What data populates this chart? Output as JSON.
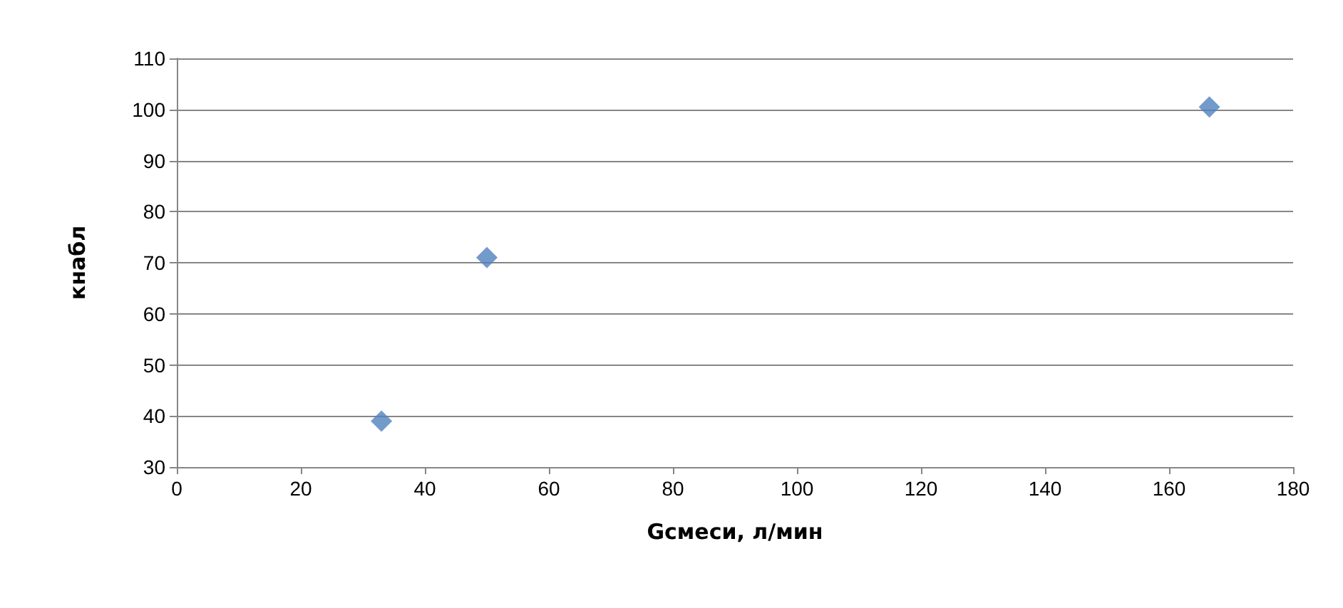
{
  "chart_data": {
    "type": "scatter",
    "xlabel": "Gсмеси, л/мин",
    "ylabel": "кнабл",
    "x": [
      33,
      50,
      166.5
    ],
    "series": [
      {
        "color": "#4f81bd",
        "values": [
          39,
          71,
          100.5
        ]
      }
    ],
    "xlim": [
      0,
      180
    ],
    "xticks": [
      0,
      20,
      40,
      60,
      80,
      100,
      120,
      140,
      160,
      180
    ],
    "ylim": [
      30,
      110
    ],
    "yticks": [
      30,
      40,
      50,
      60,
      70,
      80,
      90,
      100,
      110
    ],
    "grid": "y",
    "marker": "diamond"
  }
}
